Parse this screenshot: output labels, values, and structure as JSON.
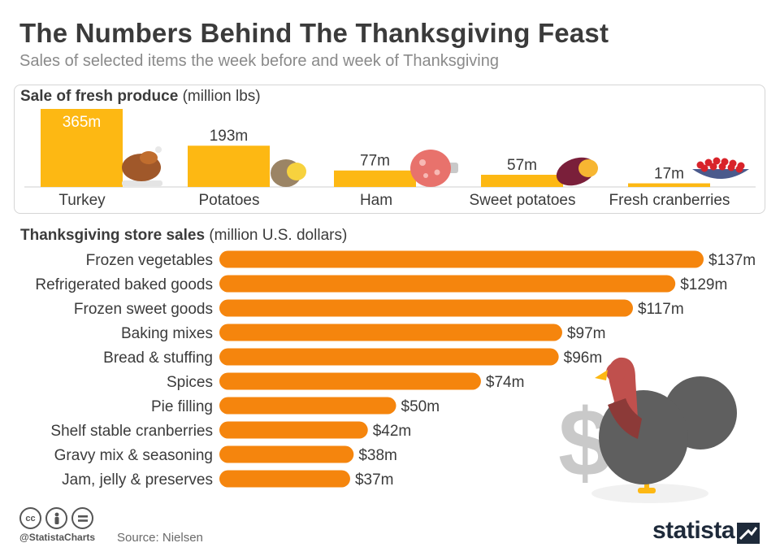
{
  "header": {
    "title": "The Numbers Behind The Thanksgiving Feast",
    "subtitle": "Sales of selected items the week before and week of Thanksgiving"
  },
  "produce": {
    "title_bold": "Sale of fresh produce",
    "title_unit": "(million lbs)"
  },
  "sales": {
    "title_bold": "Thanksgiving store sales",
    "title_unit": "(million U.S. dollars)"
  },
  "colors": {
    "produce_bar": "#FDB813",
    "sales_bar": "#F5850D",
    "text_dark": "#3b3b3b",
    "turkey_gray": "#5f5f5f",
    "turkey_red": "#c0504d",
    "brand_navy": "#1e2a3a"
  },
  "footer": {
    "source": "Source: Nielsen",
    "handle": "@StatistaCharts",
    "logo": "statista",
    "cc_icons": [
      "cc-icon",
      "by-icon",
      "nd-icon"
    ]
  },
  "chart_data": [
    {
      "type": "bar",
      "title": "Sale of fresh produce",
      "ylabel": "(million lbs)",
      "categories": [
        "Turkey",
        "Potatoes",
        "Ham",
        "Sweet potatoes",
        "Fresh cranberries"
      ],
      "values": [
        365,
        193,
        77,
        57,
        17
      ],
      "data_labels": [
        "365m",
        "193m",
        "77m",
        "57m",
        "17m"
      ],
      "ylim": [
        0,
        365
      ],
      "grid": false,
      "icons": [
        "roast-turkey-icon",
        "potato-icon",
        "ham-icon",
        "sweet-potato-icon",
        "cranberry-bowl-icon"
      ]
    },
    {
      "type": "bar",
      "orientation": "horizontal",
      "title": "Thanksgiving store sales",
      "xlabel": "(million U.S. dollars)",
      "categories": [
        "Frozen vegetables",
        "Refrigerated baked goods",
        "Frozen sweet goods",
        "Baking mixes",
        "Bread & stuffing",
        "Spices",
        "Pie filling",
        "Shelf stable cranberries",
        "Gravy mix & seasoning",
        "Jam, jelly & preserves"
      ],
      "values": [
        137,
        129,
        117,
        97,
        96,
        74,
        50,
        42,
        38,
        37
      ],
      "data_labels": [
        "$137m",
        "$129m",
        "$117m",
        "$97m",
        "$96m",
        "$74m",
        "$50m",
        "$42m",
        "$38m",
        "$37m"
      ],
      "xlim": [
        0,
        137
      ],
      "grid": false
    }
  ]
}
